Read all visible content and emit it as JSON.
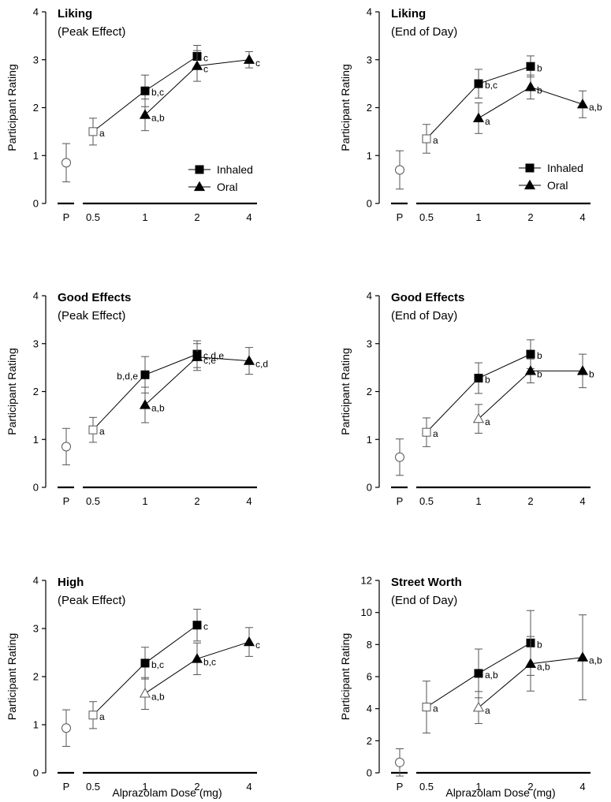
{
  "chart_data": [
    {
      "type": "line",
      "title": "Liking",
      "subtitle": "(Peak Effect)",
      "ylabel": "Participant Rating",
      "xlabel": "",
      "ylim": [
        0,
        4
      ],
      "yticks": [
        "0",
        "1",
        "2",
        "3",
        "4"
      ],
      "placebo": {
        "label": "P",
        "value": 0.85,
        "err": 0.4
      },
      "x_categories": [
        "0.5",
        "1",
        "2",
        "4"
      ],
      "legend": {
        "placement": "lower-right",
        "entries": [
          "Inhaled",
          "Oral"
        ]
      },
      "series": [
        {
          "name": "Inhaled",
          "marker": "square",
          "points": [
            {
              "x": "0.5",
              "y": 1.5,
              "err": 0.28,
              "open": true,
              "label": "a"
            },
            {
              "x": "1",
              "y": 2.35,
              "err": 0.33,
              "open": false,
              "label": "b,c"
            },
            {
              "x": "2",
              "y": 3.07,
              "err": 0.23,
              "open": false,
              "label": "c"
            }
          ]
        },
        {
          "name": "Oral",
          "marker": "triangle",
          "points": [
            {
              "x": "1",
              "y": 1.85,
              "err": 0.33,
              "open": false,
              "label": "a,b"
            },
            {
              "x": "2",
              "y": 2.87,
              "err": 0.32,
              "open": false,
              "label": "c"
            },
            {
              "x": "4",
              "y": 3.0,
              "err": 0.17,
              "open": false,
              "label": "c"
            }
          ]
        }
      ]
    },
    {
      "type": "line",
      "title": "Liking",
      "subtitle": "(End of Day)",
      "ylabel": "Participant Rating",
      "xlabel": "",
      "ylim": [
        0,
        4
      ],
      "yticks": [
        "0",
        "1",
        "2",
        "3",
        "4"
      ],
      "placebo": {
        "label": "P",
        "value": 0.7,
        "err": 0.4
      },
      "x_categories": [
        "0.5",
        "1",
        "2",
        "4"
      ],
      "legend": {
        "placement": "lower-right",
        "entries": [
          "Inhaled",
          "Oral"
        ]
      },
      "series": [
        {
          "name": "Inhaled",
          "marker": "square",
          "points": [
            {
              "x": "0.5",
              "y": 1.35,
              "err": 0.3,
              "open": true,
              "label": "a"
            },
            {
              "x": "1",
              "y": 2.5,
              "err": 0.3,
              "open": false,
              "label": "b,c"
            },
            {
              "x": "2",
              "y": 2.86,
              "err": 0.22,
              "open": false,
              "label": "b"
            }
          ]
        },
        {
          "name": "Oral",
          "marker": "triangle",
          "points": [
            {
              "x": "1",
              "y": 1.78,
              "err": 0.32,
              "open": false,
              "label": "a"
            },
            {
              "x": "2",
              "y": 2.43,
              "err": 0.25,
              "open": false,
              "label": "b"
            },
            {
              "x": "4",
              "y": 2.07,
              "err": 0.28,
              "open": false,
              "label": "a,b"
            }
          ]
        }
      ]
    },
    {
      "type": "line",
      "title": "Good Effects",
      "subtitle": "(Peak Effect)",
      "ylabel": "Participant Rating",
      "xlabel": "",
      "ylim": [
        0,
        4
      ],
      "yticks": [
        "0",
        "1",
        "2",
        "3",
        "4"
      ],
      "placebo": {
        "label": "P",
        "value": 0.85,
        "err": 0.38
      },
      "x_categories": [
        "0.5",
        "1",
        "2",
        "4"
      ],
      "series": [
        {
          "name": "Inhaled",
          "marker": "square",
          "points": [
            {
              "x": "0.5",
              "y": 1.2,
              "err": 0.26,
              "open": true,
              "label": "a"
            },
            {
              "x": "1",
              "y": 2.35,
              "err": 0.38,
              "open": false,
              "label": "b,d,e",
              "label_side": "left"
            },
            {
              "x": "2",
              "y": 2.78,
              "err": 0.28,
              "open": false,
              "label": "c,d,e"
            }
          ]
        },
        {
          "name": "Oral",
          "marker": "triangle",
          "points": [
            {
              "x": "1",
              "y": 1.72,
              "err": 0.37,
              "open": false,
              "label": "a,b"
            },
            {
              "x": "2",
              "y": 2.72,
              "err": 0.28,
              "open": false,
              "label": "c,e"
            },
            {
              "x": "4",
              "y": 2.64,
              "err": 0.28,
              "open": false,
              "label": "c,d"
            }
          ]
        }
      ]
    },
    {
      "type": "line",
      "title": "Good Effects",
      "subtitle": "(End of Day)",
      "ylabel": "Participant Rating",
      "xlabel": "",
      "ylim": [
        0,
        4
      ],
      "yticks": [
        "0",
        "1",
        "2",
        "3",
        "4"
      ],
      "placebo": {
        "label": "P",
        "value": 0.63,
        "err": 0.38
      },
      "x_categories": [
        "0.5",
        "1",
        "2",
        "4"
      ],
      "series": [
        {
          "name": "Inhaled",
          "marker": "square",
          "points": [
            {
              "x": "0.5",
              "y": 1.15,
              "err": 0.3,
              "open": true,
              "label": "a"
            },
            {
              "x": "1",
              "y": 2.28,
              "err": 0.32,
              "open": false,
              "label": "b"
            },
            {
              "x": "2",
              "y": 2.78,
              "err": 0.3,
              "open": false,
              "label": "b"
            }
          ]
        },
        {
          "name": "Oral",
          "marker": "triangle",
          "points": [
            {
              "x": "1",
              "y": 1.43,
              "err": 0.3,
              "open": true,
              "label": "a"
            },
            {
              "x": "2",
              "y": 2.43,
              "err": 0.25,
              "open": false,
              "label": "b"
            },
            {
              "x": "4",
              "y": 2.43,
              "err": 0.35,
              "open": false,
              "label": "b"
            }
          ]
        }
      ]
    },
    {
      "type": "line",
      "title": "High",
      "subtitle": "(Peak Effect)",
      "ylabel": "Participant Rating",
      "xlabel": "Alprazolam Dose (mg)",
      "ylim": [
        0,
        4
      ],
      "yticks": [
        "0",
        "1",
        "2",
        "3",
        "4"
      ],
      "placebo": {
        "label": "P",
        "value": 0.93,
        "err": 0.38
      },
      "x_categories": [
        "0.5",
        "1",
        "2",
        "4"
      ],
      "series": [
        {
          "name": "Inhaled",
          "marker": "square",
          "points": [
            {
              "x": "0.5",
              "y": 1.2,
              "err": 0.28,
              "open": true,
              "label": "a"
            },
            {
              "x": "1",
              "y": 2.28,
              "err": 0.33,
              "open": false,
              "label": "b,c"
            },
            {
              "x": "2",
              "y": 3.07,
              "err": 0.33,
              "open": false,
              "label": "c"
            }
          ]
        },
        {
          "name": "Oral",
          "marker": "triangle",
          "points": [
            {
              "x": "1",
              "y": 1.65,
              "err": 0.33,
              "open": true,
              "label": "a,b"
            },
            {
              "x": "2",
              "y": 2.37,
              "err": 0.33,
              "open": false,
              "label": "b,c"
            },
            {
              "x": "4",
              "y": 2.72,
              "err": 0.3,
              "open": false,
              "label": "c"
            }
          ]
        }
      ]
    },
    {
      "type": "line",
      "title": "Street Worth",
      "subtitle": "(End of Day)",
      "ylabel": "Participant Rating",
      "xlabel": "Alprazolam Dose (mg)",
      "ylim": [
        0,
        12
      ],
      "yticks": [
        "0",
        "2",
        "4",
        "6",
        "8",
        "10",
        "12"
      ],
      "placebo": {
        "label": "P",
        "value": 0.65,
        "err": 0.85
      },
      "x_categories": [
        "0.5",
        "1",
        "2",
        "4"
      ],
      "series": [
        {
          "name": "Inhaled",
          "marker": "square",
          "points": [
            {
              "x": "0.5",
              "y": 4.1,
              "err": 1.62,
              "open": true,
              "label": "a"
            },
            {
              "x": "1",
              "y": 6.2,
              "err": 1.52,
              "open": false,
              "label": "a,b"
            },
            {
              "x": "2",
              "y": 8.1,
              "err": 2.02,
              "open": false,
              "label": "b"
            }
          ]
        },
        {
          "name": "Oral",
          "marker": "triangle",
          "points": [
            {
              "x": "1",
              "y": 4.07,
              "err": 1.0,
              "open": true,
              "label": "a"
            },
            {
              "x": "2",
              "y": 6.8,
              "err": 1.7,
              "open": false,
              "label": "a,b"
            },
            {
              "x": "4",
              "y": 7.2,
              "err": 2.65,
              "open": false,
              "label": "a,b"
            }
          ]
        }
      ]
    }
  ]
}
